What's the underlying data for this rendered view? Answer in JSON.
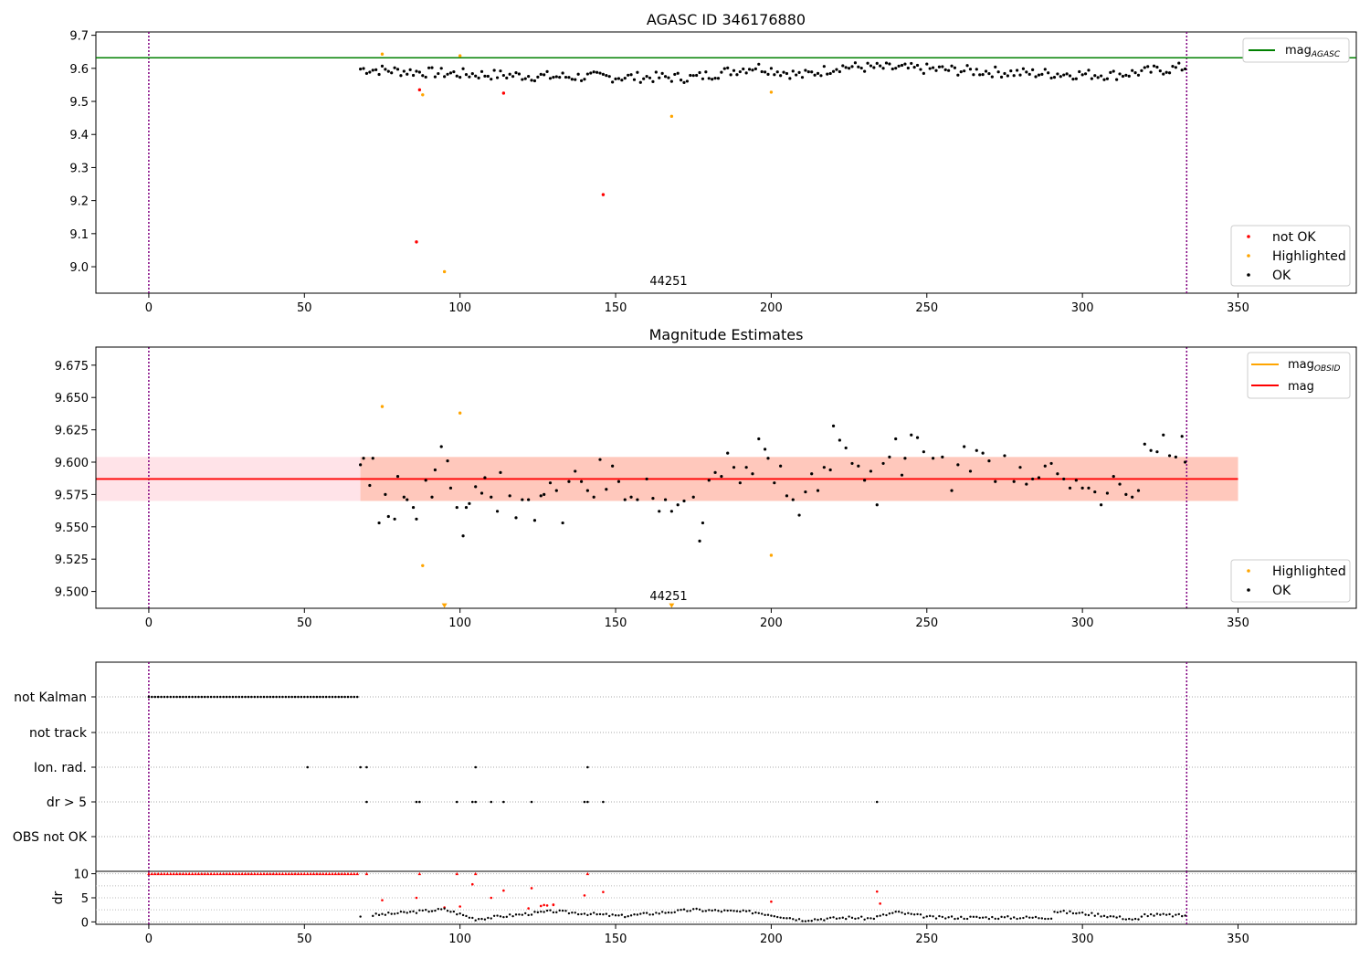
{
  "chart_data": [
    {
      "type": "scatter",
      "title": "AGASC ID 346176880",
      "annotation": "44251",
      "xlim": [
        -17,
        388
      ],
      "ylim": [
        8.92,
        9.71
      ],
      "xticks": [
        0,
        50,
        100,
        150,
        200,
        250,
        300,
        350
      ],
      "yticks": [
        9.0,
        9.1,
        9.2,
        9.3,
        9.4,
        9.5,
        9.6,
        9.7
      ],
      "ytick_labels": [
        "9.0",
        "9.1",
        "9.2",
        "9.3",
        "9.4",
        "9.5",
        "9.6",
        "9.7"
      ],
      "vlines": [
        0,
        333.5
      ],
      "hlines": [
        {
          "y": 9.632,
          "color": "#008000"
        }
      ],
      "legend_top": {
        "placement": "upper-right",
        "entries": [
          {
            "label_main": "mag",
            "label_sub": "AGASC",
            "color": "#008000",
            "style": "line"
          }
        ]
      },
      "legend_bottom": {
        "placement": "lower-right",
        "entries": [
          {
            "label": "not OK",
            "color": "#ff0000"
          },
          {
            "label": "Highlighted",
            "color": "#ffa500"
          },
          {
            "label": "OK",
            "color": "#000000"
          }
        ]
      },
      "series": [
        {
          "name": "not OK",
          "color": "#ff0000",
          "x": [
            86,
            87,
            114,
            146
          ],
          "y": [
            9.075,
            9.535,
            9.525,
            9.218
          ]
        },
        {
          "name": "Highlighted",
          "color": "#ffa500",
          "x": [
            75,
            88,
            95,
            100,
            168,
            200
          ],
          "y": [
            9.643,
            9.52,
            8.985,
            9.638,
            9.455,
            9.528
          ]
        }
      ],
      "ok_baseline": {
        "name": "OK",
        "color": "#000000",
        "x_start": 68,
        "x_end": 333,
        "step": 1,
        "segments": [
          [
            68,
            9.598
          ],
          [
            95,
            9.585
          ],
          [
            130,
            9.575
          ],
          [
            175,
            9.572
          ],
          [
            195,
            9.605
          ],
          [
            210,
            9.578
          ],
          [
            222,
            9.605
          ],
          [
            250,
            9.598
          ],
          [
            280,
            9.586
          ],
          [
            310,
            9.58
          ],
          [
            333,
            9.603
          ]
        ]
      }
    },
    {
      "type": "scatter",
      "title": "Magnitude Estimates",
      "annotation": "44251",
      "xlim": [
        -17,
        388
      ],
      "ylim": [
        9.487,
        9.689
      ],
      "xticks": [
        0,
        50,
        100,
        150,
        200,
        250,
        300,
        350
      ],
      "yticks": [
        9.5,
        9.525,
        9.55,
        9.575,
        9.6,
        9.625,
        9.65,
        9.675
      ],
      "ytick_labels": [
        "9.500",
        "9.525",
        "9.550",
        "9.575",
        "9.600",
        "9.625",
        "9.650",
        "9.675"
      ],
      "vlines": [
        0,
        333.5
      ],
      "mag_line": {
        "y": 9.587,
        "x_range": [
          -17,
          350
        ],
        "color": "#ff0000"
      },
      "band_outer": {
        "y": [
          9.57,
          9.604
        ],
        "x_range": [
          -17,
          350
        ],
        "color": "#ffc0cb"
      },
      "band_inner": {
        "y": [
          9.57,
          9.604
        ],
        "x_range": [
          68,
          350
        ],
        "color": "#ffa07a"
      },
      "legend_top": {
        "placement": "upper-right",
        "entries": [
          {
            "label_main": "mag",
            "label_sub": "OBSID",
            "color": "#ffa500",
            "style": "line"
          },
          {
            "label_main": "mag",
            "label_sub": "",
            "color": "#ff0000",
            "style": "line"
          }
        ]
      },
      "legend_bottom": {
        "placement": "lower-right",
        "entries": [
          {
            "label": "Highlighted",
            "color": "#ffa500"
          },
          {
            "label": "OK",
            "color": "#000000"
          }
        ]
      },
      "series": [
        {
          "name": "Highlighted",
          "color": "#ffa500",
          "x": [
            75,
            88,
            100,
            200
          ],
          "y": [
            9.643,
            9.52,
            9.638,
            9.528
          ]
        }
      ],
      "offscale_markers": {
        "color": "#ffa500",
        "x": [
          95,
          168
        ],
        "y": 9.488
      },
      "ok_points": {
        "name": "OK",
        "color": "#000000",
        "x": [
          68,
          69,
          71,
          72,
          74,
          76,
          77,
          79,
          80,
          82,
          83,
          85,
          86,
          89,
          91,
          92,
          94,
          96,
          97,
          99,
          101,
          102,
          103,
          105,
          107,
          108,
          110,
          112,
          113,
          116,
          118,
          120,
          122,
          124,
          126,
          127,
          129,
          131,
          133,
          135,
          137,
          139,
          141,
          143,
          145,
          147,
          149,
          151,
          153,
          155,
          157,
          160,
          162,
          164,
          166,
          168,
          170,
          172,
          175,
          177,
          178,
          180,
          182,
          184,
          186,
          188,
          190,
          192,
          194,
          196,
          198,
          199,
          201,
          203,
          205,
          207,
          209,
          211,
          213,
          215,
          217,
          219,
          220,
          222,
          224,
          226,
          228,
          230,
          232,
          234,
          236,
          238,
          240,
          242,
          243,
          245,
          247,
          249,
          252,
          255,
          258,
          260,
          262,
          264,
          266,
          268,
          270,
          272,
          275,
          278,
          280,
          282,
          284,
          286,
          288,
          290,
          292,
          294,
          296,
          298,
          300,
          302,
          304,
          306,
          308,
          310,
          312,
          314,
          316,
          318,
          320,
          322,
          324,
          326,
          328,
          330,
          332,
          333
        ],
        "y": [
          9.598,
          9.603,
          9.582,
          9.603,
          9.553,
          9.575,
          9.558,
          9.556,
          9.589,
          9.573,
          9.571,
          9.565,
          9.556,
          9.586,
          9.573,
          9.594,
          9.612,
          9.601,
          9.58,
          9.565,
          9.543,
          9.565,
          9.568,
          9.581,
          9.576,
          9.588,
          9.573,
          9.562,
          9.592,
          9.574,
          9.557,
          9.571,
          9.571,
          9.555,
          9.574,
          9.575,
          9.584,
          9.578,
          9.553,
          9.585,
          9.593,
          9.585,
          9.578,
          9.573,
          9.602,
          9.579,
          9.597,
          9.585,
          9.571,
          9.573,
          9.571,
          9.587,
          9.572,
          9.562,
          9.571,
          9.562,
          9.567,
          9.57,
          9.573,
          9.539,
          9.553,
          9.586,
          9.592,
          9.589,
          9.607,
          9.596,
          9.584,
          9.596,
          9.591,
          9.618,
          9.61,
          9.603,
          9.584,
          9.597,
          9.574,
          9.571,
          9.559,
          9.577,
          9.591,
          9.578,
          9.596,
          9.594,
          9.628,
          9.617,
          9.611,
          9.599,
          9.597,
          9.586,
          9.593,
          9.567,
          9.599,
          9.604,
          9.618,
          9.59,
          9.603,
          9.621,
          9.619,
          9.608,
          9.603,
          9.604,
          9.578,
          9.598,
          9.612,
          9.593,
          9.609,
          9.607,
          9.601,
          9.585,
          9.605,
          9.585,
          9.596,
          9.583,
          9.587,
          9.588,
          9.597,
          9.599,
          9.591,
          9.587,
          9.58,
          9.586,
          9.58,
          9.58,
          9.577,
          9.567,
          9.576,
          9.589,
          9.583,
          9.575,
          9.573,
          9.578,
          9.614,
          9.609,
          9.608,
          9.621,
          9.605,
          9.604,
          9.62,
          9.6
        ]
      }
    },
    {
      "type": "scatter",
      "title": "",
      "xlim": [
        -17,
        388
      ],
      "xticks": [
        0,
        50,
        100,
        150,
        200,
        250,
        300,
        350
      ],
      "vlines": [
        0,
        333.5
      ],
      "flag_rows": [
        "not Kalman",
        "not track",
        "Ion. rad.",
        "dr > 5",
        "OBS not OK"
      ],
      "flags": {
        "not Kalman": {
          "x_start": 0,
          "x_end": 67
        },
        "not track": [],
        "Ion. rad.": [
          51,
          68,
          70,
          105,
          141
        ],
        "dr > 5": [
          70,
          86,
          87,
          99,
          104,
          105,
          110,
          114,
          123,
          140,
          141,
          146,
          234
        ],
        "OBS not OK": []
      },
      "dr_panel": {
        "ylabel": "dr",
        "ylim": [
          -0.5,
          10.5
        ],
        "yticks": [
          0,
          5,
          10
        ],
        "ytick_labels": [
          "0",
          "5",
          "10"
        ],
        "red_points": {
          "color": "#ff0000",
          "x_range_cap": [
            0,
            67
          ],
          "x": [
            70,
            75,
            86,
            87,
            99,
            104,
            105,
            110,
            114,
            123,
            130,
            140,
            141,
            146,
            200,
            234,
            235,
            95,
            100,
            122,
            126,
            127,
            128,
            130
          ],
          "y": [
            10,
            4.5,
            5,
            10,
            10,
            7.8,
            10,
            5,
            6.5,
            7,
            3.5,
            5.5,
            10,
            6.2,
            4.2,
            6.3,
            3.8,
            3,
            3.2,
            2.8,
            3.3,
            3.5,
            3.4,
            3.6
          ]
        },
        "black_points": {
          "color": "#000000",
          "segments": [
            [
              68,
              1.2
            ],
            [
              80,
              1.8
            ],
            [
              95,
              2.6
            ],
            [
              105,
              0.6
            ],
            [
              130,
              2.2
            ],
            [
              152,
              1.2
            ],
            [
              175,
              2.5
            ],
            [
              195,
              2.0
            ],
            [
              210,
              0.4
            ],
            [
              225,
              0.9
            ],
            [
              232,
              0.7
            ],
            [
              240,
              2.0
            ],
            [
              252,
              0.9
            ],
            [
              290,
              0.9
            ],
            [
              291,
              2.2
            ],
            [
              305,
              1.5
            ],
            [
              318,
              0.4
            ],
            [
              320,
              1.5
            ],
            [
              333,
              1.3
            ]
          ]
        }
      }
    }
  ]
}
